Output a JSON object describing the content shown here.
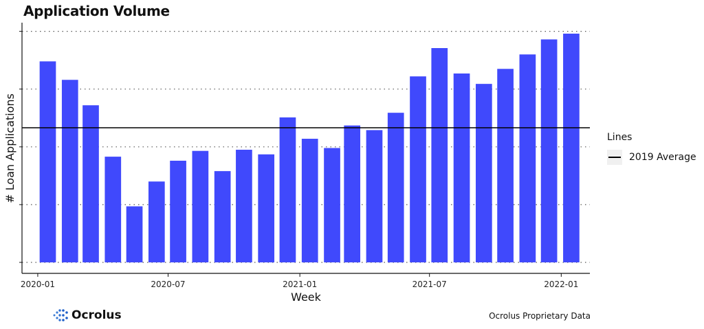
{
  "chart_data": {
    "type": "bar",
    "title": "Application Volume",
    "xlabel": "Week",
    "ylabel": "# Loan Applications",
    "x_dates": [
      "2020-01-15",
      "2020-02-15",
      "2020-03-15",
      "2020-04-15",
      "2020-05-15",
      "2020-06-15",
      "2020-07-15",
      "2020-08-15",
      "2020-09-15",
      "2020-10-15",
      "2020-11-15",
      "2020-12-15",
      "2021-01-15",
      "2021-02-15",
      "2021-03-15",
      "2021-04-15",
      "2021-05-15",
      "2021-06-15",
      "2021-07-15",
      "2021-08-15",
      "2021-09-15",
      "2021-10-15",
      "2021-11-15",
      "2021-12-15",
      "2022-01-15"
    ],
    "values": [
      3.48,
      3.16,
      2.72,
      1.83,
      0.97,
      1.4,
      1.76,
      1.93,
      1.58,
      1.95,
      1.87,
      2.51,
      2.14,
      1.98,
      2.37,
      2.29,
      2.59,
      3.22,
      3.71,
      3.27,
      3.09,
      3.35,
      3.6,
      3.86,
      3.96
    ],
    "ylim": [
      0,
      4.15
    ],
    "ygrid": [
      0,
      1,
      2,
      3,
      4
    ],
    "xlim": [
      "2019-12-10",
      "2022-02-10"
    ],
    "x_ticks": [
      {
        "date": "2020-01-01",
        "label": "2020-01"
      },
      {
        "date": "2020-07-01",
        "label": "2020-07"
      },
      {
        "date": "2021-01-01",
        "label": "2021-01"
      },
      {
        "date": "2021-07-01",
        "label": "2021-07"
      },
      {
        "date": "2022-01-01",
        "label": "2022-01"
      }
    ],
    "reference_line": {
      "name": "2019 Average",
      "value": 2.33,
      "color": "#000000"
    },
    "bar_color": "#4049fc",
    "grid": "horizontal-dotted",
    "legend": {
      "title": "Lines",
      "placement": "right"
    }
  },
  "footer": {
    "logo_text": "Ocrolus",
    "logo_icon": "ocrolus-dots-logo-icon",
    "source": "Ocrolus Proprietary Data"
  }
}
